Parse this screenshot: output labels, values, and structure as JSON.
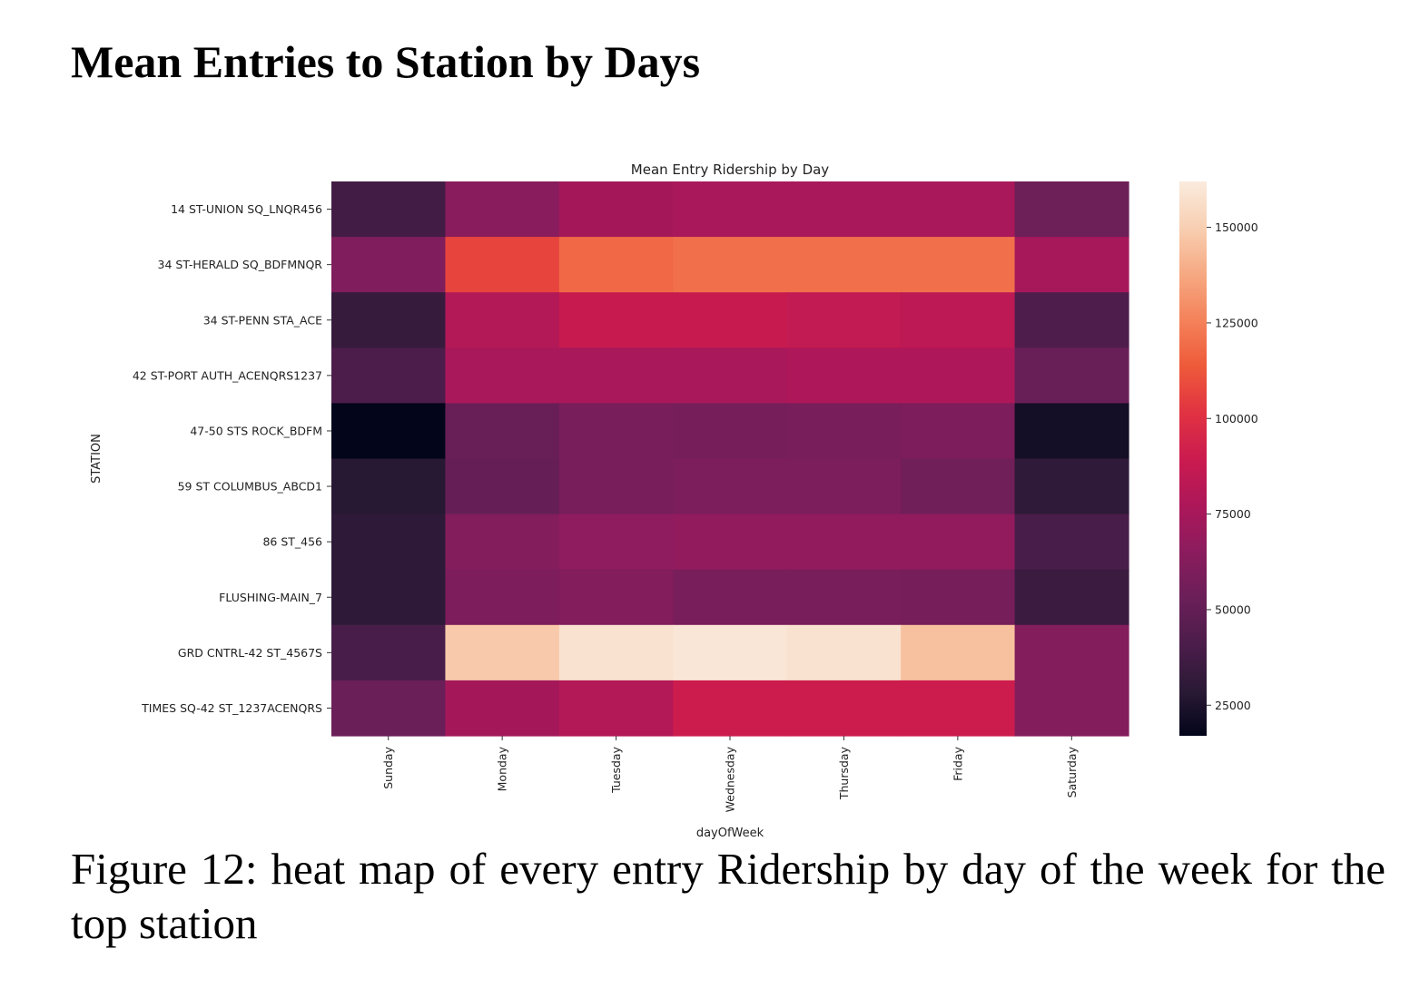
{
  "document": {
    "heading": "Mean Entries to Station by Days",
    "caption": "Figure 12: heat map of every entry Ridership by day of the week for the top station"
  },
  "chart_data": {
    "type": "heatmap",
    "title": "Mean Entry Ridership by Day",
    "xlabel": "dayOfWeek",
    "ylabel": "STATION",
    "x_categories": [
      "Sunday",
      "Monday",
      "Tuesday",
      "Wednesday",
      "Thursday",
      "Friday",
      "Saturday"
    ],
    "y_categories": [
      "14 ST-UNION SQ_LNQR456",
      "34 ST-HERALD SQ_BDFMNQR",
      "34 ST-PENN STA_ACE",
      "42 ST-PORT AUTH_ACENQRS1237",
      "47-50 STS ROCK_BDFM",
      "59 ST COLUMBUS_ABCD1",
      "86 ST_456",
      "FLUSHING-MAIN_7",
      "GRD CNTRL-42 ST_4567S",
      "TIMES SQ-42 ST_1237ACENQRS"
    ],
    "values": [
      [
        38000,
        64000,
        74000,
        76000,
        76000,
        76000,
        54000
      ],
      [
        61000,
        107000,
        118000,
        120000,
        120000,
        120000,
        75000
      ],
      [
        33000,
        80000,
        88000,
        88000,
        86000,
        84000,
        42000
      ],
      [
        41000,
        76000,
        76000,
        76000,
        78000,
        78000,
        52000
      ],
      [
        17000,
        52000,
        58000,
        57000,
        58000,
        60000,
        22000
      ],
      [
        28000,
        51000,
        58000,
        59000,
        59000,
        55000,
        31000
      ],
      [
        30000,
        62000,
        66000,
        67000,
        67000,
        67000,
        40000
      ],
      [
        30000,
        60000,
        62000,
        58000,
        58000,
        57000,
        35000
      ],
      [
        40000,
        148000,
        158000,
        160000,
        158000,
        145000,
        62000
      ],
      [
        53000,
        74000,
        80000,
        90000,
        90000,
        90000,
        62000
      ]
    ],
    "colorbar": {
      "min": 17000,
      "max": 162000,
      "ticks": [
        25000,
        50000,
        75000,
        100000,
        125000,
        150000
      ],
      "tick_labels": [
        "25000",
        "50000",
        "75000",
        "100000",
        "125000",
        "150000"
      ]
    },
    "colormap": "rocket",
    "colormap_stops": [
      "#03051a",
      "#2b1a36",
      "#4c1d4b",
      "#6b1f58",
      "#8c1c5e",
      "#ad1759",
      "#cb1b4f",
      "#e13342",
      "#ee5a3a",
      "#f4825a",
      "#f6a982",
      "#f8cfb2",
      "#faebdd"
    ],
    "legend": "right",
    "grid": false
  }
}
